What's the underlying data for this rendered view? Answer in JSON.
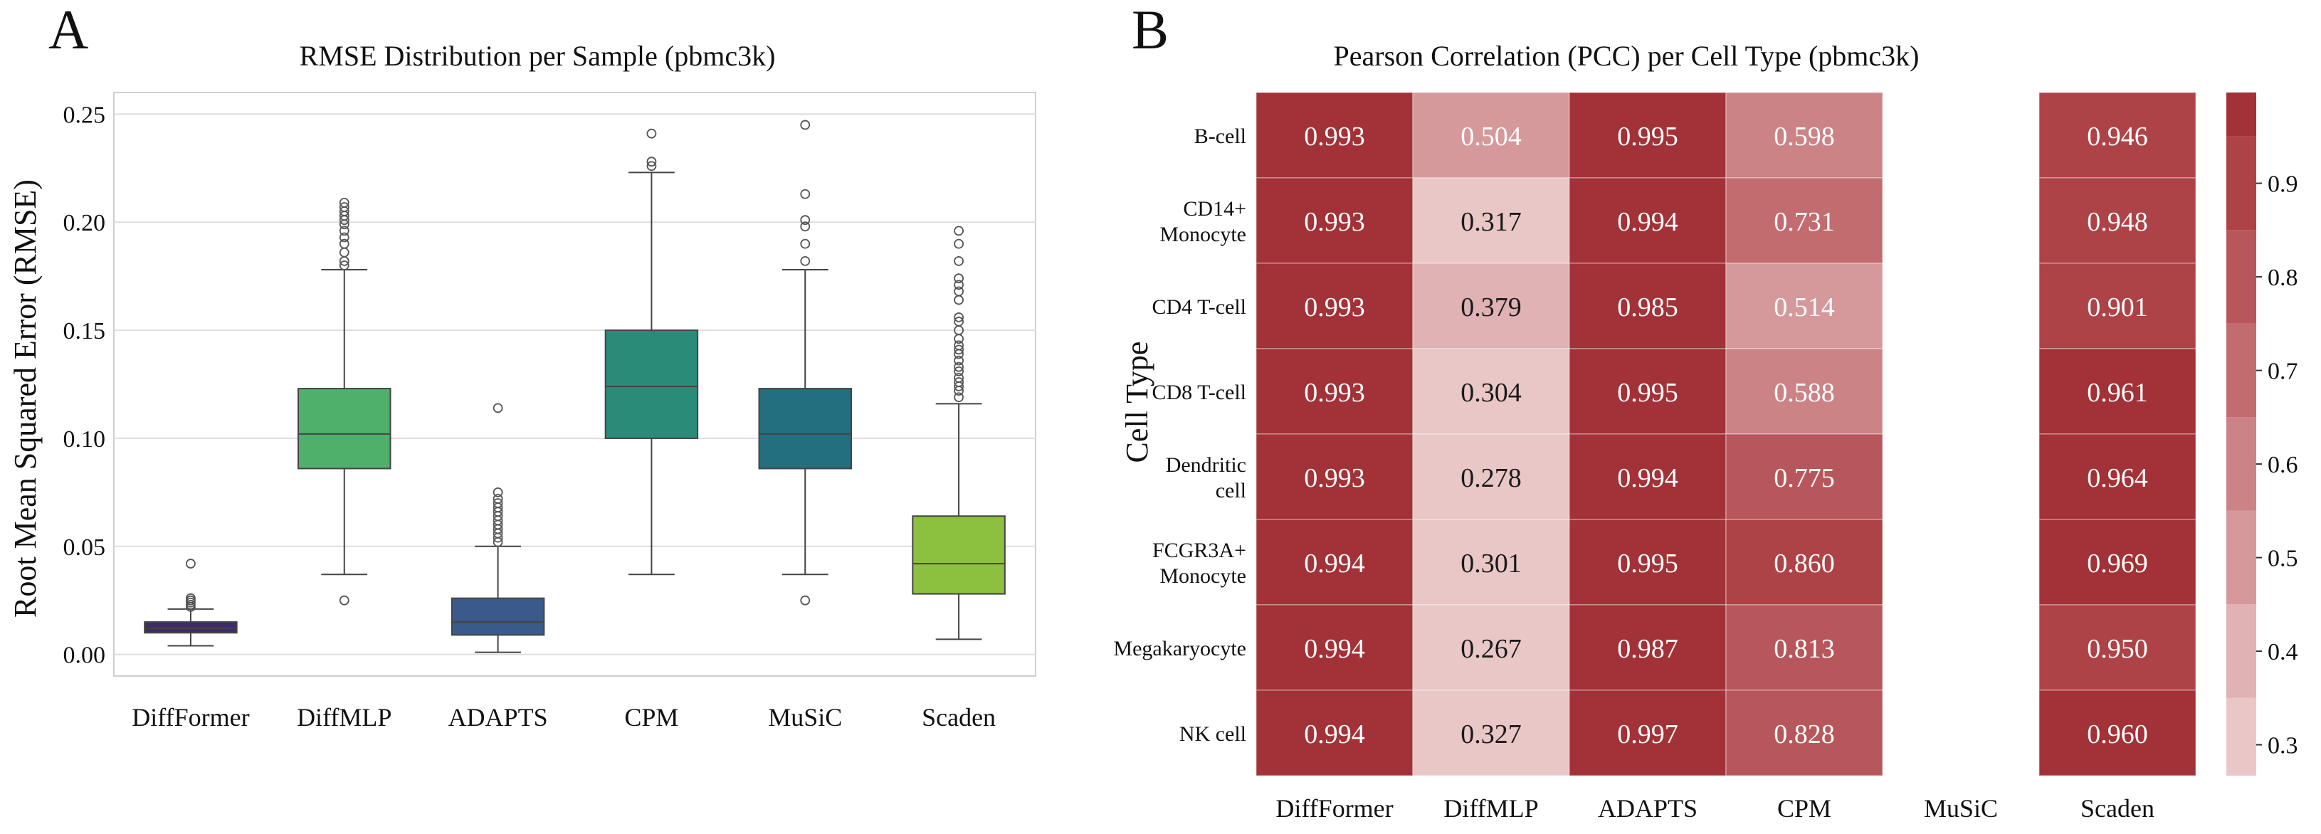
{
  "chart_data": [
    {
      "panel_label": "A",
      "type": "box",
      "title": "RMSE Distribution per Sample (pbmc3k)",
      "xlabel": "",
      "ylabel": "Root Mean Squared Error (RMSE)",
      "ylim": [
        -0.01,
        0.26
      ],
      "yticks": [
        0.0,
        0.05,
        0.1,
        0.15,
        0.2,
        0.25
      ],
      "ytick_labels": [
        "0.00",
        "0.05",
        "0.10",
        "0.15",
        "0.20",
        "0.25"
      ],
      "grid": true,
      "categories": [
        "DiffFormer",
        "DiffMLP",
        "ADAPTS",
        "CPM",
        "MuSiC",
        "Scaden"
      ],
      "series": [
        {
          "name": "DiffFormer",
          "color": "#3f2a6e",
          "whisker_low": 0.004,
          "q1": 0.01,
          "median": 0.012,
          "q3": 0.015,
          "whisker_high": 0.021,
          "outliers": [
            0.022,
            0.023,
            0.024,
            0.025,
            0.026,
            0.042
          ]
        },
        {
          "name": "DiffMLP",
          "color": "#4fb06b",
          "whisker_low": 0.037,
          "q1": 0.086,
          "median": 0.102,
          "q3": 0.123,
          "whisker_high": 0.178,
          "outliers": [
            0.025,
            0.18,
            0.182,
            0.186,
            0.19,
            0.193,
            0.196,
            0.199,
            0.201,
            0.203,
            0.205,
            0.207,
            0.209
          ]
        },
        {
          "name": "ADAPTS",
          "color": "#3a5a8c",
          "whisker_low": 0.001,
          "q1": 0.009,
          "median": 0.015,
          "q3": 0.026,
          "whisker_high": 0.05,
          "outliers": [
            0.052,
            0.054,
            0.056,
            0.058,
            0.06,
            0.062,
            0.064,
            0.066,
            0.068,
            0.07,
            0.072,
            0.075,
            0.114
          ]
        },
        {
          "name": "CPM",
          "color": "#2a8c78",
          "whisker_low": 0.037,
          "q1": 0.1,
          "median": 0.124,
          "q3": 0.15,
          "whisker_high": 0.223,
          "outliers": [
            0.226,
            0.228,
            0.241
          ]
        },
        {
          "name": "MuSiC",
          "color": "#236f7f",
          "whisker_low": 0.037,
          "q1": 0.086,
          "median": 0.102,
          "q3": 0.123,
          "whisker_high": 0.178,
          "outliers": [
            0.025,
            0.182,
            0.19,
            0.198,
            0.201,
            0.213,
            0.245
          ]
        },
        {
          "name": "Scaden",
          "color": "#8cc13f",
          "whisker_low": 0.007,
          "q1": 0.028,
          "median": 0.042,
          "q3": 0.064,
          "whisker_high": 0.116,
          "outliers": [
            0.119,
            0.122,
            0.124,
            0.126,
            0.128,
            0.131,
            0.133,
            0.136,
            0.139,
            0.141,
            0.143,
            0.146,
            0.15,
            0.154,
            0.156,
            0.164,
            0.168,
            0.171,
            0.174,
            0.182,
            0.19,
            0.196
          ]
        }
      ]
    },
    {
      "panel_label": "B",
      "type": "heatmap",
      "title": "Pearson Correlation (PCC) per Cell Type (pbmc3k)",
      "ylabel": "Cell Type",
      "columns": [
        "DiffFormer",
        "DiffMLP",
        "ADAPTS",
        "CPM",
        "MuSiC",
        "Scaden"
      ],
      "rows": [
        [
          "B-cell"
        ],
        [
          "CD14+",
          "Monocyte"
        ],
        [
          "CD4 T-cell"
        ],
        [
          "CD8 T-cell"
        ],
        [
          "Dendritic",
          "cell"
        ],
        [
          "FCGR3A+",
          "Monocyte"
        ],
        [
          "Megakaryocyte"
        ],
        [
          "NK cell"
        ]
      ],
      "values": [
        [
          0.993,
          0.504,
          0.995,
          0.598,
          null,
          0.946
        ],
        [
          0.993,
          0.317,
          0.994,
          0.731,
          null,
          0.948
        ],
        [
          0.993,
          0.379,
          0.985,
          0.514,
          null,
          0.901
        ],
        [
          0.993,
          0.304,
          0.995,
          0.588,
          null,
          0.961
        ],
        [
          0.993,
          0.278,
          0.994,
          0.775,
          null,
          0.964
        ],
        [
          0.994,
          0.301,
          0.995,
          0.86,
          null,
          0.969
        ],
        [
          0.994,
          0.267,
          0.987,
          0.813,
          null,
          0.95
        ],
        [
          0.994,
          0.327,
          0.997,
          0.828,
          null,
          0.96
        ]
      ],
      "cell_labels": [
        [
          "0.993",
          "0.504",
          "0.995",
          "0.598",
          "",
          "0.946"
        ],
        [
          "0.993",
          "0.317",
          "0.994",
          "0.731",
          "",
          "0.948"
        ],
        [
          "0.993",
          "0.379",
          "0.985",
          "0.514",
          "",
          "0.901"
        ],
        [
          "0.993",
          "0.304",
          "0.995",
          "0.588",
          "",
          "0.961"
        ],
        [
          "0.993",
          "0.278",
          "0.994",
          "0.775",
          "",
          "0.964"
        ],
        [
          "0.994",
          "0.301",
          "0.995",
          "0.860",
          "",
          "0.969"
        ],
        [
          "0.994",
          "0.267",
          "0.987",
          "0.813",
          "",
          "0.950"
        ],
        [
          "0.994",
          "0.327",
          "0.997",
          "0.828",
          "",
          "0.960"
        ]
      ],
      "colorbar": {
        "range": [
          0.267,
          0.997
        ],
        "bins": [
          0.267,
          0.35,
          0.45,
          0.55,
          0.65,
          0.75,
          0.85,
          0.95,
          0.997
        ],
        "colors": [
          "#e9c7c7",
          "#e0b2b3",
          "#d5999b",
          "#cb8386",
          "#c26c70",
          "#b8575b",
          "#ae4347",
          "#a23237"
        ],
        "ticks": [
          0.3,
          0.4,
          0.5,
          0.6,
          0.7,
          0.8,
          0.9
        ],
        "tick_labels": [
          "0.3",
          "0.4",
          "0.5",
          "0.6",
          "0.7",
          "0.8",
          "0.9"
        ]
      }
    }
  ]
}
